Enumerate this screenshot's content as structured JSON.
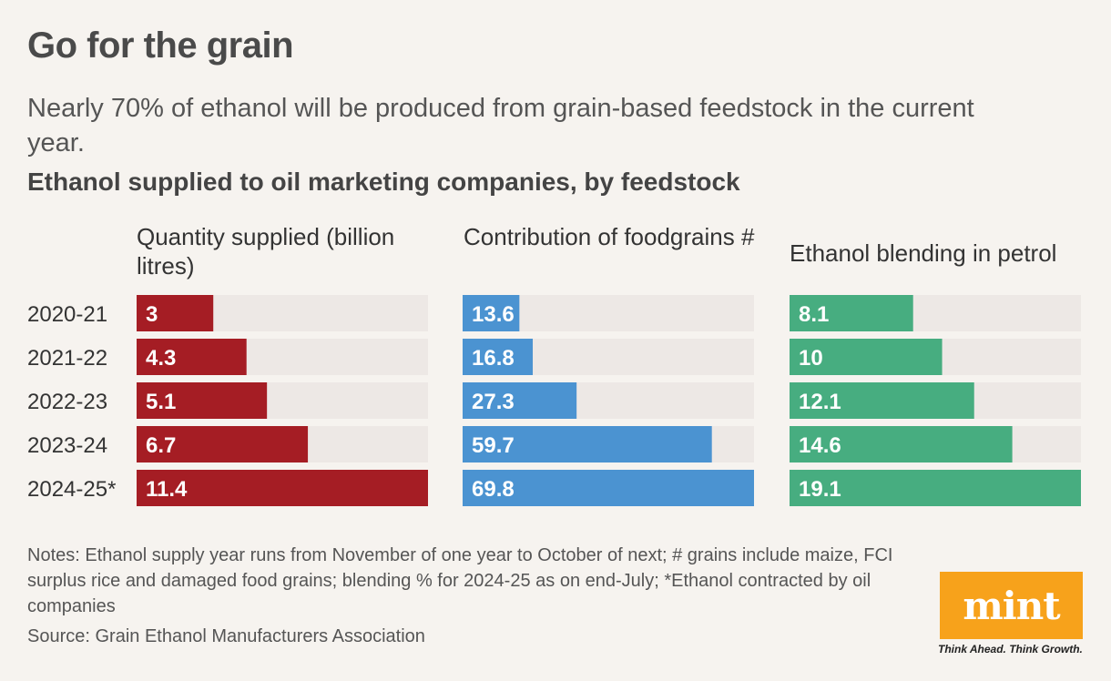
{
  "header": {
    "title": "Go for the grain",
    "subtitle": "Nearly 70% of ethanol will be produced from grain-based feedstock in the current year.",
    "chart_heading": "Ethanol supplied to oil marketing companies, by feedstock"
  },
  "footer": {
    "notes": "Notes: Ethanol supply year runs from November of one year to October of next; # grains include maize, FCI surplus rice and damaged food grains; blending % for 2024-25 as on end-July; *Ethanol contracted by oil companies",
    "source": "Source: Grain Ethanol Manufacturers Association",
    "logo": "mint",
    "tagline": "Think Ahead. Think Growth."
  },
  "colors": {
    "background": "#f6f3ef",
    "track": "#ede8e5",
    "quantity": "#a51d24",
    "foodgrains": "#4b93d1",
    "blending": "#47ad80",
    "logo": "#f7a21b"
  },
  "chart_data": [
    {
      "type": "bar",
      "orientation": "horizontal",
      "title": "Quantity supplied (billion litres)",
      "categories": [
        "2020-21",
        "2021-22",
        "2022-23",
        "2023-24",
        "2024-25*"
      ],
      "values": [
        3,
        4.3,
        5.1,
        6.7,
        11.4
      ],
      "labels": [
        "3",
        "4.3",
        "5.1",
        "6.7",
        "11.4"
      ],
      "xlim": [
        0,
        11.4
      ],
      "color": "#a51d24"
    },
    {
      "type": "bar",
      "orientation": "horizontal",
      "title": "Contribution of foodgrains #",
      "categories": [
        "2020-21",
        "2021-22",
        "2022-23",
        "2023-24",
        "2024-25*"
      ],
      "values": [
        13.6,
        16.8,
        27.3,
        59.7,
        69.8
      ],
      "labels": [
        "13.6",
        "16.8",
        "27.3",
        "59.7",
        "69.8"
      ],
      "xlim": [
        0,
        69.8
      ],
      "color": "#4b93d1"
    },
    {
      "type": "bar",
      "orientation": "horizontal",
      "title": "Ethanol blending in petrol",
      "categories": [
        "2020-21",
        "2021-22",
        "2022-23",
        "2023-24",
        "2024-25*"
      ],
      "values": [
        8.1,
        10,
        12.1,
        14.6,
        19.1
      ],
      "labels": [
        "8.1",
        "10",
        "12.1",
        "14.6",
        "19.1"
      ],
      "xlim": [
        0,
        19.1
      ],
      "color": "#47ad80"
    }
  ]
}
